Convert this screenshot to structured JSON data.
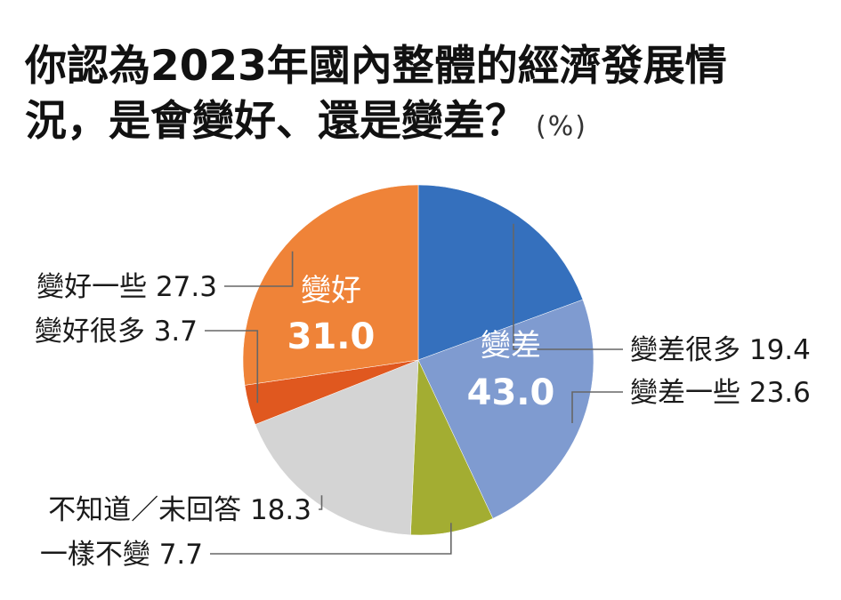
{
  "title_line1": "你認為2023年國內整體的經濟發展情",
  "title_line2": "況，是會變好、還是變差？",
  "unit": "(%)",
  "chart_data": {
    "type": "pie",
    "start_angle_deg": 90,
    "direction": "clockwise",
    "slices": [
      {
        "label": "變差很多",
        "value": 19.4,
        "color": "#3570bd",
        "side": "right"
      },
      {
        "label": "變差一些",
        "value": 23.6,
        "color": "#7f9bd0",
        "side": "right"
      },
      {
        "label": "一樣不變",
        "value": 7.7,
        "color": "#a3ad32",
        "side": "left"
      },
      {
        "label": "不知道／未回答",
        "value": 18.3,
        "color": "#d4d4d4",
        "side": "left"
      },
      {
        "label": "變好很多",
        "value": 3.7,
        "color": "#e0581f",
        "side": "left"
      },
      {
        "label": "變好一些",
        "value": 27.3,
        "color": "#ef8338",
        "side": "left"
      }
    ],
    "groups": [
      {
        "label": "變好",
        "value": "31.0"
      },
      {
        "label": "變差",
        "value": "43.0"
      }
    ]
  }
}
